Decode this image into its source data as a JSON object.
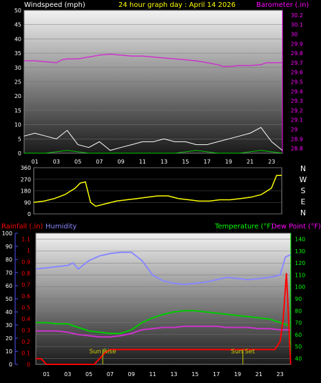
{
  "header": {
    "left_label": "Windspeed (mph)",
    "title": "24 hour graph day : April 14 2026",
    "right_label": "Barometer (.in)"
  },
  "colors": {
    "wind": "#ffffff",
    "gust": "#00cc00",
    "barometer": "#cc33cc",
    "direction": "#ffff00",
    "rain": "#ff0000",
    "humidity": "#8888ff",
    "temperature": "#00cc00",
    "dewpoint": "#cc33cc",
    "sun": "#cccc00",
    "right_axis": "#ff00ff",
    "bottom_right_axis": "#00ff00",
    "left_axis_rain": "#ff0000",
    "left_axis_hum": "#5555ff"
  },
  "hours": [
    "01",
    "03",
    "05",
    "07",
    "09",
    "11",
    "13",
    "15",
    "17",
    "19",
    "21",
    "23"
  ],
  "bottom": {
    "rain_label": "Rainfall (.in)",
    "humidity_label": "Humidity",
    "temp_label": "Temperature (°F)",
    "dew_label": "Dew Point (°F)",
    "sun_rise": "Sun Rise",
    "sun_set": "Sun Set"
  },
  "chart_data": [
    {
      "type": "line",
      "name": "wind-barometer",
      "y_left_ticks": [
        0,
        5,
        10,
        15,
        20,
        25,
        30,
        35,
        40,
        45,
        50
      ],
      "y_right_ticks": [
        "28.8",
        "28.9",
        "29",
        "29.1",
        "29.2",
        "29.3",
        "29.4",
        "29.5",
        "29.6",
        "29.7",
        "29.8",
        "29.9",
        "30",
        "30.1",
        "30.2"
      ],
      "ylim_left": [
        0,
        50
      ],
      "ylim_right": [
        28.75,
        30.25
      ],
      "xlim": [
        0,
        24
      ],
      "series": [
        {
          "key": "barometer",
          "x": [
            0,
            1,
            2,
            3,
            3.5,
            4,
            5,
            6,
            7,
            8,
            9,
            10,
            11,
            12,
            13,
            14,
            15,
            16,
            17,
            18,
            18.5,
            19,
            20,
            21,
            22,
            22.5,
            23,
            24
          ],
          "y": [
            29.72,
            29.72,
            29.71,
            29.7,
            29.73,
            29.74,
            29.74,
            29.76,
            29.78,
            29.79,
            29.78,
            29.77,
            29.77,
            29.76,
            29.75,
            29.74,
            29.73,
            29.72,
            29.7,
            29.68,
            29.66,
            29.66,
            29.67,
            29.67,
            29.68,
            29.7,
            29.7,
            29.7
          ]
        },
        {
          "key": "wind",
          "x": [
            0,
            1,
            2,
            3,
            4,
            5,
            6,
            7,
            8,
            9,
            10,
            11,
            12,
            13,
            14,
            15,
            16,
            17,
            18,
            19,
            20,
            21,
            22,
            23,
            24
          ],
          "y": [
            6,
            7,
            6,
            5,
            8,
            3,
            2,
            4,
            1,
            2,
            3,
            4,
            4,
            5,
            4,
            4,
            3,
            3,
            4,
            5,
            6,
            7,
            9,
            4,
            1
          ]
        },
        {
          "key": "gust",
          "x": [
            0,
            2,
            4,
            6,
            8,
            10,
            12,
            14,
            16,
            18,
            20,
            22,
            24
          ],
          "y": [
            0,
            0,
            1,
            0,
            0,
            0,
            0,
            0,
            1,
            0,
            0,
            1,
            0
          ]
        }
      ]
    },
    {
      "type": "line",
      "name": "wind-direction",
      "y_ticks": [
        0,
        90,
        180,
        270,
        360
      ],
      "y_right_labels": [
        "N",
        "W",
        "S",
        "E",
        "N"
      ],
      "ylim": [
        0,
        360
      ],
      "xlim": [
        0,
        24
      ],
      "series": [
        {
          "key": "direction",
          "x": [
            0,
            1,
            2,
            3,
            4,
            4.5,
            5,
            5.5,
            6,
            7,
            8,
            9,
            10,
            11,
            12,
            13,
            14,
            15,
            16,
            17,
            18,
            19,
            20,
            21,
            22,
            23,
            23.5,
            24
          ],
          "y": [
            90,
            100,
            120,
            150,
            200,
            240,
            250,
            90,
            60,
            80,
            100,
            110,
            120,
            130,
            140,
            140,
            120,
            110,
            100,
            100,
            110,
            110,
            120,
            130,
            150,
            200,
            300,
            300
          ]
        }
      ]
    },
    {
      "type": "line",
      "name": "temp-humidity-rain",
      "y_hum_ticks": [
        0,
        10,
        20,
        30,
        40,
        50,
        60,
        70,
        80,
        90,
        100
      ],
      "y_rain_ticks": [
        "0",
        "0.1",
        "0.2",
        "0.3",
        "0.4",
        "0.5",
        "0.6",
        "0.7",
        "0.8",
        "0.9",
        "1",
        "1.1"
      ],
      "y_temp_ticks": [
        40,
        50,
        60,
        70,
        80,
        90,
        100,
        110,
        120,
        130,
        140
      ],
      "ylim_temp": [
        35,
        145
      ],
      "ylim_rain": [
        0,
        1.15
      ],
      "xlim": [
        0,
        24
      ],
      "series": [
        {
          "key": "humidity",
          "x": [
            0,
            1,
            2,
            3,
            3.5,
            4,
            5,
            6,
            7,
            8,
            9,
            10,
            11,
            12,
            13,
            14,
            15,
            16,
            17,
            18,
            19,
            20,
            21,
            22,
            23,
            23.5,
            24
          ],
          "y": [
            115,
            116,
            117,
            118,
            120,
            115,
            122,
            126,
            128,
            129,
            129,
            122,
            110,
            105,
            103,
            102,
            103,
            104,
            106,
            108,
            107,
            106,
            107,
            108,
            110,
            125,
            127
          ]
        },
        {
          "key": "temperature",
          "x": [
            0,
            1,
            2,
            3,
            4,
            5,
            6,
            7,
            8,
            9,
            10,
            11,
            12,
            13,
            14,
            15,
            16,
            17,
            18,
            19,
            20,
            21,
            22,
            23,
            24
          ],
          "y": [
            70,
            70,
            69,
            69,
            66,
            63,
            62,
            61,
            61,
            64,
            70,
            74,
            77,
            79,
            80,
            80,
            79,
            78,
            77,
            76,
            75,
            74,
            73,
            70,
            67
          ]
        },
        {
          "key": "dewpoint",
          "x": [
            0,
            1,
            2,
            3,
            4,
            5,
            6,
            7,
            8,
            9,
            10,
            11,
            12,
            13,
            14,
            15,
            16,
            17,
            18,
            19,
            20,
            21,
            22,
            23,
            24
          ],
          "y": [
            63,
            63,
            63,
            62,
            60,
            59,
            58,
            58,
            59,
            61,
            64,
            65,
            66,
            66,
            67,
            67,
            67,
            67,
            66,
            66,
            66,
            65,
            65,
            64,
            64
          ]
        },
        {
          "key": "rain",
          "x": [
            0,
            0.5,
            1,
            5.5,
            6,
            6.5,
            7,
            22.5,
            23,
            23.3,
            23.6,
            24
          ],
          "y": [
            0.05,
            0.05,
            0,
            0,
            0.05,
            0.1,
            0.13,
            0.13,
            0.2,
            0.4,
            0.8,
            0
          ]
        }
      ],
      "annotations": [
        {
          "text_key": "sun_rise",
          "x": 6.3
        },
        {
          "text_key": "sun_set",
          "x": 19.5
        }
      ]
    }
  ]
}
